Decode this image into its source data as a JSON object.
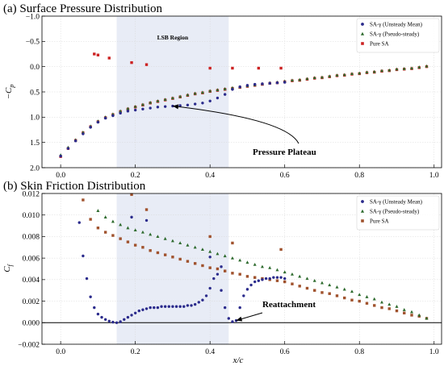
{
  "chart_data": [
    {
      "type": "scatter",
      "title": "(a) Surface Pressure Distribution",
      "xlabel": "",
      "ylabel": "−C_p",
      "ylabel_main": "−C",
      "ylabel_sub": "p",
      "xlim": [
        -0.05,
        1.02
      ],
      "ylim": [
        2.0,
        -1.0
      ],
      "inverted_y": true,
      "x_ticks": [
        "0.0",
        "0.2",
        "0.4",
        "0.6",
        "0.8",
        "1.0"
      ],
      "y_ticks": [
        "−1.0",
        "−0.5",
        "0.0",
        "0.5",
        "1.0",
        "1.5",
        "2.0"
      ],
      "grid": true,
      "legend_position": "top-right",
      "region": {
        "label": "LSB Region",
        "x0": 0.15,
        "x1": 0.45
      },
      "annotation": {
        "text": "Pressure Plateau",
        "target": [
          0.3,
          0.78
        ]
      },
      "series": [
        {
          "name": "SA-γ (Unsteady Mean)",
          "marker": "circle",
          "color": "#2b2b8c",
          "x": [
            0.0,
            0.02,
            0.04,
            0.06,
            0.08,
            0.1,
            0.12,
            0.14,
            0.16,
            0.18,
            0.2,
            0.22,
            0.24,
            0.26,
            0.28,
            0.3,
            0.32,
            0.34,
            0.36,
            0.38,
            0.4,
            0.42,
            0.44,
            0.46,
            0.48,
            0.5,
            0.52,
            0.54,
            0.56,
            0.58,
            0.6
          ],
          "y": [
            1.77,
            1.62,
            1.47,
            1.33,
            1.2,
            1.1,
            1.02,
            0.97,
            0.92,
            0.88,
            0.86,
            0.84,
            0.82,
            0.8,
            0.79,
            0.78,
            0.77,
            0.76,
            0.74,
            0.72,
            0.68,
            0.62,
            0.55,
            0.45,
            0.4,
            0.37,
            0.35,
            0.34,
            0.33,
            0.32,
            0.31
          ]
        },
        {
          "name": "SA-γ (Pseudo-steady)",
          "marker": "triangle",
          "color": "#2e6b2e",
          "x": [
            0.0,
            0.02,
            0.04,
            0.06,
            0.08,
            0.1,
            0.12,
            0.14,
            0.16,
            0.18,
            0.2,
            0.22,
            0.24,
            0.26,
            0.28,
            0.3,
            0.32,
            0.34,
            0.36,
            0.38,
            0.4,
            0.42,
            0.44,
            0.46,
            0.48,
            0.5,
            0.52,
            0.54,
            0.56,
            0.58,
            0.6,
            0.62,
            0.64,
            0.66,
            0.68,
            0.7,
            0.72,
            0.74,
            0.76,
            0.78,
            0.8,
            0.82,
            0.84,
            0.86,
            0.88,
            0.9,
            0.92,
            0.94,
            0.96,
            0.98
          ],
          "y": [
            1.75,
            1.6,
            1.45,
            1.3,
            1.18,
            1.08,
            1.0,
            0.94,
            0.88,
            0.83,
            0.79,
            0.75,
            0.71,
            0.68,
            0.65,
            0.62,
            0.59,
            0.56,
            0.53,
            0.51,
            0.48,
            0.46,
            0.44,
            0.42,
            0.4,
            0.38,
            0.36,
            0.34,
            0.32,
            0.31,
            0.29,
            0.27,
            0.26,
            0.24,
            0.22,
            0.21,
            0.19,
            0.17,
            0.16,
            0.14,
            0.13,
            0.11,
            0.1,
            0.08,
            0.07,
            0.05,
            0.04,
            0.03,
            0.01,
            -0.01
          ]
        },
        {
          "name": "Pure SA",
          "marker": "square",
          "color": "#cc2222",
          "x": [
            0.0,
            0.02,
            0.04,
            0.06,
            0.08,
            0.1,
            0.12,
            0.14,
            0.16,
            0.18,
            0.2,
            0.22,
            0.24,
            0.26,
            0.28,
            0.3,
            0.32,
            0.34,
            0.36,
            0.38,
            0.4,
            0.42,
            0.44,
            0.46,
            0.48,
            0.5,
            0.52,
            0.54,
            0.56,
            0.58,
            0.6,
            0.62,
            0.64,
            0.66,
            0.68,
            0.7,
            0.72,
            0.74,
            0.76,
            0.78,
            0.8,
            0.82,
            0.84,
            0.86,
            0.88,
            0.9,
            0.92,
            0.94,
            0.96,
            0.98,
            0.09,
            0.1,
            0.13,
            0.19,
            0.23,
            0.4,
            0.46,
            0.53,
            0.59
          ],
          "y": [
            1.78,
            1.62,
            1.46,
            1.31,
            1.19,
            1.09,
            1.01,
            0.95,
            0.89,
            0.84,
            0.8,
            0.76,
            0.72,
            0.69,
            0.66,
            0.63,
            0.6,
            0.57,
            0.54,
            0.52,
            0.49,
            0.47,
            0.45,
            0.43,
            0.41,
            0.39,
            0.37,
            0.35,
            0.33,
            0.32,
            0.3,
            0.28,
            0.27,
            0.25,
            0.23,
            0.22,
            0.2,
            0.18,
            0.17,
            0.15,
            0.14,
            0.12,
            0.11,
            0.09,
            0.08,
            0.06,
            0.05,
            0.04,
            0.02,
            0.0,
            -0.25,
            -0.23,
            -0.17,
            -0.08,
            -0.04,
            0.03,
            0.03,
            0.03,
            0.03
          ]
        }
      ]
    },
    {
      "type": "scatter",
      "title": "(b) Skin Friction Distribution",
      "xlabel": "x/c",
      "ylabel": "C_f",
      "ylabel_main": "C",
      "ylabel_sub": "f",
      "xlim": [
        -0.05,
        1.02
      ],
      "ylim": [
        -0.002,
        0.012
      ],
      "x_ticks": [
        "0.0",
        "0.2",
        "0.4",
        "0.6",
        "0.8",
        "1.0"
      ],
      "y_ticks": [
        "−0.002",
        "0.000",
        "0.002",
        "0.004",
        "0.006",
        "0.008",
        "0.010",
        "0.012"
      ],
      "grid": true,
      "legend_position": "top-right",
      "zero_line": true,
      "region": {
        "label": "",
        "x0": 0.15,
        "x1": 0.45
      },
      "annotation": {
        "text": "Reattachment",
        "target": [
          0.47,
          0.0002
        ]
      },
      "series": [
        {
          "name": "SA-γ (Unsteady Mean)",
          "marker": "circle",
          "color": "#2b2b8c",
          "x": [
            0.05,
            0.06,
            0.07,
            0.08,
            0.09,
            0.1,
            0.11,
            0.12,
            0.13,
            0.14,
            0.15,
            0.16,
            0.17,
            0.18,
            0.19,
            0.2,
            0.21,
            0.22,
            0.23,
            0.24,
            0.25,
            0.26,
            0.27,
            0.28,
            0.29,
            0.3,
            0.31,
            0.32,
            0.33,
            0.34,
            0.35,
            0.36,
            0.37,
            0.38,
            0.39,
            0.4,
            0.41,
            0.42,
            0.43,
            0.44,
            0.45,
            0.46,
            0.47,
            0.48,
            0.49,
            0.5,
            0.51,
            0.52,
            0.53,
            0.54,
            0.55,
            0.56,
            0.57,
            0.58,
            0.59,
            0.6,
            0.19,
            0.23,
            0.4,
            0.43
          ],
          "y": [
            0.0093,
            0.0062,
            0.0041,
            0.0024,
            0.0014,
            0.0008,
            0.0005,
            0.0003,
            0.00015,
            5e-05,
            0.0,
            0.0001,
            0.0003,
            0.0005,
            0.0007,
            0.0009,
            0.0011,
            0.0012,
            0.0013,
            0.0014,
            0.0014,
            0.0014,
            0.0015,
            0.0015,
            0.0015,
            0.0015,
            0.0015,
            0.0015,
            0.0015,
            0.0016,
            0.0016,
            0.0017,
            0.0019,
            0.0021,
            0.0025,
            0.0032,
            0.0041,
            0.0045,
            0.003,
            0.0014,
            0.0004,
            0.0001,
            0.0002,
            0.0014,
            0.0025,
            0.0031,
            0.0035,
            0.0038,
            0.0039,
            0.004,
            0.0041,
            0.0041,
            0.0042,
            0.0042,
            0.0042,
            0.0041,
            0.0098,
            0.0095,
            0.0061,
            0.0052
          ]
        },
        {
          "name": "SA-γ (Pseudo-steady)",
          "marker": "triangle",
          "color": "#2e6b2e",
          "x": [
            0.1,
            0.12,
            0.14,
            0.16,
            0.18,
            0.2,
            0.22,
            0.24,
            0.26,
            0.28,
            0.3,
            0.32,
            0.34,
            0.36,
            0.38,
            0.4,
            0.42,
            0.44,
            0.46,
            0.48,
            0.5,
            0.52,
            0.54,
            0.56,
            0.58,
            0.6,
            0.62,
            0.64,
            0.66,
            0.68,
            0.7,
            0.72,
            0.74,
            0.76,
            0.78,
            0.8,
            0.82,
            0.84,
            0.86,
            0.88,
            0.9,
            0.92,
            0.94,
            0.96,
            0.98
          ],
          "y": [
            0.0104,
            0.0098,
            0.0094,
            0.0091,
            0.0088,
            0.0086,
            0.0084,
            0.0082,
            0.008,
            0.0078,
            0.0076,
            0.0074,
            0.0072,
            0.007,
            0.0068,
            0.0066,
            0.0064,
            0.0062,
            0.006,
            0.0058,
            0.0056,
            0.0054,
            0.0052,
            0.0051,
            0.0049,
            0.0047,
            0.0045,
            0.0043,
            0.0041,
            0.0039,
            0.0037,
            0.0035,
            0.0033,
            0.0031,
            0.0029,
            0.0026,
            0.0024,
            0.0022,
            0.0019,
            0.0017,
            0.0015,
            0.0012,
            0.001,
            0.0007,
            0.0004
          ]
        },
        {
          "name": "Pure SA",
          "marker": "square",
          "color": "#a0522d",
          "x": [
            0.06,
            0.08,
            0.1,
            0.12,
            0.14,
            0.16,
            0.18,
            0.2,
            0.22,
            0.24,
            0.26,
            0.28,
            0.3,
            0.32,
            0.34,
            0.36,
            0.38,
            0.4,
            0.42,
            0.44,
            0.46,
            0.48,
            0.5,
            0.52,
            0.54,
            0.56,
            0.58,
            0.6,
            0.62,
            0.64,
            0.66,
            0.68,
            0.7,
            0.72,
            0.74,
            0.76,
            0.78,
            0.8,
            0.82,
            0.84,
            0.86,
            0.88,
            0.9,
            0.92,
            0.94,
            0.96,
            0.98,
            0.19,
            0.23,
            0.4,
            0.46,
            0.59
          ],
          "y": [
            0.0114,
            0.0096,
            0.0088,
            0.0084,
            0.0081,
            0.0078,
            0.0075,
            0.0072,
            0.007,
            0.0067,
            0.0065,
            0.0063,
            0.0061,
            0.0059,
            0.0057,
            0.0055,
            0.0053,
            0.0051,
            0.005,
            0.0048,
            0.0046,
            0.0045,
            0.0043,
            0.0042,
            0.0041,
            0.004,
            0.0039,
            0.0038,
            0.0036,
            0.0034,
            0.0032,
            0.003,
            0.0028,
            0.0027,
            0.0025,
            0.0023,
            0.0021,
            0.002,
            0.0018,
            0.0016,
            0.0014,
            0.0013,
            0.0011,
            0.0009,
            0.0007,
            0.0006,
            0.0004,
            0.0119,
            0.0105,
            0.008,
            0.0074,
            0.0068
          ]
        }
      ]
    }
  ]
}
